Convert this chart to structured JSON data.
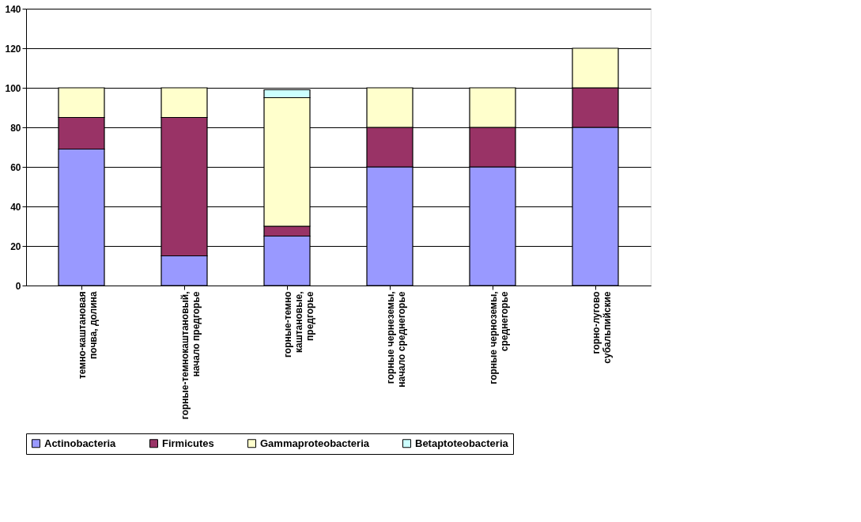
{
  "chart_data": {
    "type": "bar",
    "stacked": true,
    "categories": [
      "темно-каштановая почва, долина",
      "горные-темнокаштановый, начало предгорье",
      "горные-темно каштановые, предгорье",
      "горные чернеземы, начало среднегорье",
      "горные черноземы, среднегорье",
      "горно-лугово субальпийские"
    ],
    "series": [
      {
        "name": "Actinobacteria",
        "color": "#9999ff",
        "values": [
          69,
          15,
          25,
          60,
          60,
          80
        ]
      },
      {
        "name": "Firmicutes",
        "color": "#993366",
        "values": [
          16,
          70,
          5,
          20,
          20,
          20
        ]
      },
      {
        "name": "Gammaproteobacteria",
        "color": "#ffffcc",
        "values": [
          15,
          15,
          65,
          20,
          20,
          20
        ]
      },
      {
        "name": "Betaptoteobacteria",
        "color": "#ccffff",
        "values": [
          null,
          null,
          4,
          null,
          null,
          null
        ]
      }
    ],
    "ylim": [
      0,
      140
    ],
    "yticks": [
      0,
      20,
      40,
      60,
      80,
      100,
      120,
      140
    ],
    "grid": "y",
    "legend": "bottom"
  }
}
